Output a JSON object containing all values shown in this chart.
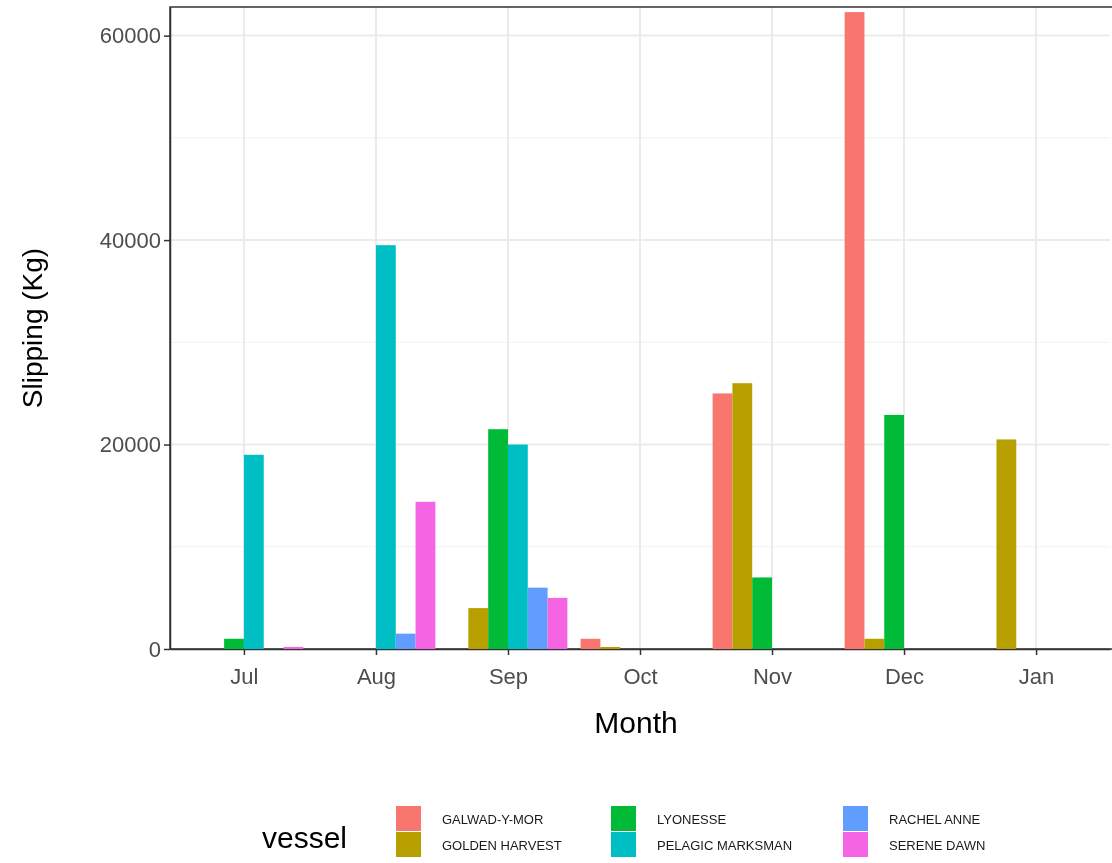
{
  "chart_data": {
    "type": "bar",
    "xlabel": "Month",
    "ylabel": "Slipping (Kg)",
    "legend_title": "vessel",
    "legend": "bottom",
    "grid": true,
    "categories": [
      "Jul",
      "Aug",
      "Sep",
      "Oct",
      "Nov",
      "Dec",
      "Jan"
    ],
    "ylim": [
      0,
      62800
    ],
    "yticks": [
      0,
      20000,
      40000,
      60000
    ],
    "series": [
      {
        "name": "GALWAD-Y-MOR",
        "color": "#f8766d",
        "values": [
          null,
          null,
          null,
          1000,
          25000,
          62300,
          null
        ]
      },
      {
        "name": "GOLDEN HARVEST",
        "color": "#b79f00",
        "values": [
          null,
          null,
          4000,
          200,
          26000,
          1000,
          20500
        ]
      },
      {
        "name": "LYONESSE",
        "color": "#00ba38",
        "values": [
          1000,
          null,
          21500,
          null,
          7000,
          22900,
          null
        ]
      },
      {
        "name": "PELAGIC MARKSMAN",
        "color": "#00bfc4",
        "values": [
          19000,
          39500,
          20000,
          null,
          null,
          null,
          null
        ]
      },
      {
        "name": "RACHEL ANNE",
        "color": "#619cff",
        "values": [
          null,
          1500,
          6000,
          null,
          null,
          null,
          null
        ]
      },
      {
        "name": "SERENE DAWN",
        "color": "#f564e3",
        "values": [
          200,
          14400,
          5000,
          null,
          null,
          null,
          null
        ]
      }
    ]
  }
}
